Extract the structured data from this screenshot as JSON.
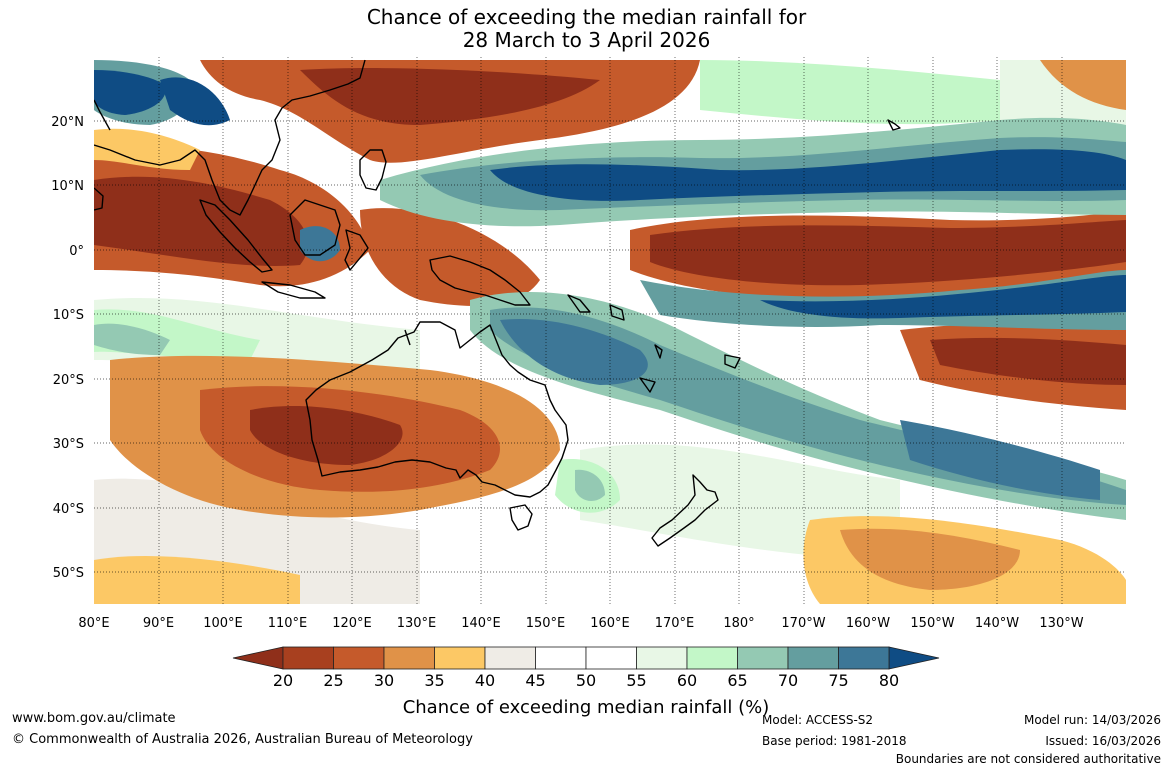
{
  "title": {
    "line1": "Chance of exceeding the median rainfall for",
    "line2": "28 March to 3 April 2026"
  },
  "map": {
    "lat_labels": [
      "20°N",
      "10°N",
      "0°",
      "10°S",
      "20°S",
      "30°S",
      "40°S",
      "50°S"
    ],
    "lon_labels": [
      "80°E",
      "90°E",
      "100°E",
      "110°E",
      "120°E",
      "130°E",
      "140°E",
      "150°E",
      "160°E",
      "170°E",
      "180°",
      "170°W",
      "160°W",
      "150°W",
      "140°W",
      "130°W"
    ],
    "lat_range": [
      -55,
      30
    ],
    "lon_range": [
      80,
      240
    ],
    "colors": {
      "below_80": "#8f2f1a",
      "c20_25": "#a8401f",
      "c25_30": "#c55a2b",
      "c30_35": "#e09248",
      "c35_40": "#fcc865",
      "c40_45": "#efece6",
      "c45_50": "#ffffff",
      "c55_60": "#e8f7e6",
      "c60_65": "#c3f7c8",
      "c65_70": "#94c9b3",
      "c70_75": "#649e9f",
      "c75_80": "#3d7797",
      "above_80": "#0f4c84"
    }
  },
  "colorbar": {
    "ticks": [
      "20",
      "25",
      "30",
      "35",
      "40",
      "45",
      "50",
      "55",
      "60",
      "65",
      "70",
      "75",
      "80"
    ],
    "label": "Chance of exceeding median rainfall (%)",
    "colors": [
      "#a8401f",
      "#c55a2b",
      "#e09248",
      "#fcc865",
      "#efece6",
      "#ffffff",
      "#ffffff",
      "#e8f7e6",
      "#c3f7c8",
      "#94c9b3",
      "#649e9f",
      "#3d7797"
    ],
    "end_low": "#8f2f1a",
    "end_high": "#0f4c84"
  },
  "footer": {
    "website": "www.bom.gov.au/climate",
    "copyright": "© Commonwealth of Australia 2026, Australian Bureau of Meteorology",
    "model": "Model: ACCESS-S2",
    "base_period": "Base period: 1981-2018",
    "model_run": "Model run: 14/03/2026",
    "issued": "Issued: 16/03/2026",
    "disclaimer": "Boundaries are not considered authoritative"
  }
}
